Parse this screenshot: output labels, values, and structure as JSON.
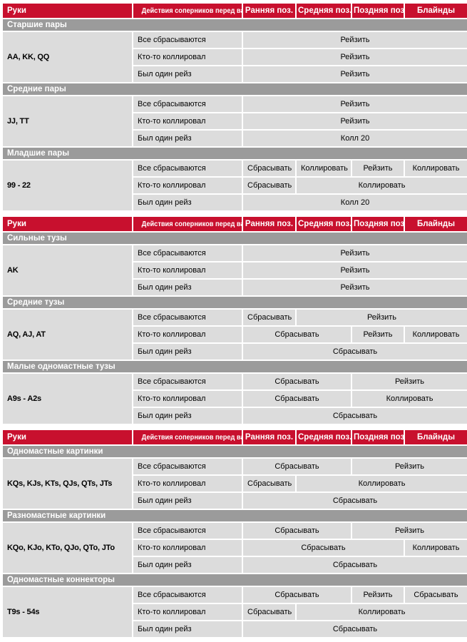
{
  "colors": {
    "header_red": "#c8102e",
    "section_band_gray": "#9b9b9b",
    "cell_gray": "#dcdcdc",
    "header_text": "#ffffff",
    "body_text": "#000000"
  },
  "header": {
    "hands_label": "Руки",
    "actions_label": "Действия соперников перед вами",
    "positions": [
      "Ранняя поз.",
      "Средняя поз.",
      "Поздняя поз.",
      "Блайнды"
    ]
  },
  "tables": [
    {
      "sections": [
        {
          "title": "Старшие пары",
          "hand": "AA, KK, QQ",
          "rows": [
            {
              "action": "Все сбрасываются",
              "cells": [
                {
                  "text": "Рейзить",
                  "span": 4
                }
              ]
            },
            {
              "action": "Кто-то коллировал",
              "cells": [
                {
                  "text": "Рейзить",
                  "span": 4
                }
              ]
            },
            {
              "action": "Был один рейз",
              "cells": [
                {
                  "text": "Рейзить",
                  "span": 4
                }
              ]
            }
          ]
        },
        {
          "title": "Средние пары",
          "hand": "JJ, TT",
          "rows": [
            {
              "action": "Все сбрасываются",
              "cells": [
                {
                  "text": "Рейзить",
                  "span": 4
                }
              ]
            },
            {
              "action": "Кто-то коллировал",
              "cells": [
                {
                  "text": "Рейзить",
                  "span": 4
                }
              ]
            },
            {
              "action": "Был один рейз",
              "cells": [
                {
                  "text": "Колл 20",
                  "span": 4
                }
              ]
            }
          ]
        },
        {
          "title": "Младшие пары",
          "hand": "99 - 22",
          "rows": [
            {
              "action": "Все сбрасываются",
              "cells": [
                {
                  "text": "Сбрасывать",
                  "span": 1
                },
                {
                  "text": "Коллировать",
                  "span": 1
                },
                {
                  "text": "Рейзить",
                  "span": 1
                },
                {
                  "text": "Коллировать",
                  "span": 1
                }
              ]
            },
            {
              "action": "Кто-то коллировал",
              "cells": [
                {
                  "text": "Сбрасывать",
                  "span": 1
                },
                {
                  "text": "Коллировать",
                  "span": 3
                }
              ]
            },
            {
              "action": "Был один рейз",
              "cells": [
                {
                  "text": "Колл 20",
                  "span": 4
                }
              ]
            }
          ]
        }
      ]
    },
    {
      "sections": [
        {
          "title": "Сильные тузы",
          "hand": "AK",
          "rows": [
            {
              "action": "Все сбрасываются",
              "cells": [
                {
                  "text": "Рейзить",
                  "span": 4
                }
              ]
            },
            {
              "action": "Кто-то коллировал",
              "cells": [
                {
                  "text": "Рейзить",
                  "span": 4
                }
              ]
            },
            {
              "action": "Был один рейз",
              "cells": [
                {
                  "text": "Рейзить",
                  "span": 4
                }
              ]
            }
          ]
        },
        {
          "title": "Средние тузы",
          "hand": "AQ, AJ, AT",
          "rows": [
            {
              "action": "Все сбрасываются",
              "cells": [
                {
                  "text": "Сбрасывать",
                  "span": 1
                },
                {
                  "text": "Рейзить",
                  "span": 3
                }
              ]
            },
            {
              "action": "Кто-то коллировал",
              "cells": [
                {
                  "text": "Сбрасывать",
                  "span": 2
                },
                {
                  "text": "Рейзить",
                  "span": 1
                },
                {
                  "text": "Коллировать",
                  "span": 1
                }
              ]
            },
            {
              "action": "Был один рейз",
              "cells": [
                {
                  "text": "Сбрасывать",
                  "span": 4
                }
              ]
            }
          ]
        },
        {
          "title": "Малые одномастные тузы",
          "hand": "A9s - A2s",
          "rows": [
            {
              "action": "Все сбрасываются",
              "cells": [
                {
                  "text": "Сбрасывать",
                  "span": 2
                },
                {
                  "text": "Рейзить",
                  "span": 2
                }
              ]
            },
            {
              "action": "Кто-то коллировал",
              "cells": [
                {
                  "text": "Сбрасывать",
                  "span": 2
                },
                {
                  "text": "Коллировать",
                  "span": 2
                }
              ]
            },
            {
              "action": "Был один рейз",
              "cells": [
                {
                  "text": "Сбрасывать",
                  "span": 4
                }
              ]
            }
          ]
        }
      ]
    },
    {
      "sections": [
        {
          "title": "Одномастные картинки",
          "hand": "KQs, KJs, KTs, QJs, QTs, JTs",
          "rows": [
            {
              "action": "Все сбрасываются",
              "cells": [
                {
                  "text": "Сбрасывать",
                  "span": 2
                },
                {
                  "text": "Рейзить",
                  "span": 2
                }
              ]
            },
            {
              "action": "Кто-то коллировал",
              "cells": [
                {
                  "text": "Сбрасывать",
                  "span": 1
                },
                {
                  "text": "Коллировать",
                  "span": 3
                }
              ]
            },
            {
              "action": "Был один рейз",
              "cells": [
                {
                  "text": "Сбрасывать",
                  "span": 4
                }
              ]
            }
          ]
        },
        {
          "title": "Разномастные картинки",
          "hand": "KQo, KJo, KTo, QJo, QTo, JTo",
          "rows": [
            {
              "action": "Все сбрасываются",
              "cells": [
                {
                  "text": "Сбрасывать",
                  "span": 2
                },
                {
                  "text": "Рейзить",
                  "span": 2
                }
              ]
            },
            {
              "action": "Кто-то коллировал",
              "cells": [
                {
                  "text": "Сбрасывать",
                  "span": 3
                },
                {
                  "text": "Коллировать",
                  "span": 1
                }
              ]
            },
            {
              "action": "Был один рейз",
              "cells": [
                {
                  "text": "Сбрасывать",
                  "span": 4
                }
              ]
            }
          ]
        },
        {
          "title": "Одномастные коннекторы",
          "hand": "T9s - 54s",
          "rows": [
            {
              "action": "Все сбрасываются",
              "cells": [
                {
                  "text": "Сбрасывать",
                  "span": 2
                },
                {
                  "text": "Рейзить",
                  "span": 1
                },
                {
                  "text": "Сбрасывать",
                  "span": 1
                }
              ]
            },
            {
              "action": "Кто-то коллировал",
              "cells": [
                {
                  "text": "Сбрасывать",
                  "span": 1
                },
                {
                  "text": "Коллировать",
                  "span": 3
                }
              ]
            },
            {
              "action": "Был один рейз",
              "cells": [
                {
                  "text": "Сбрасывать",
                  "span": 4
                }
              ]
            }
          ]
        }
      ]
    }
  ]
}
